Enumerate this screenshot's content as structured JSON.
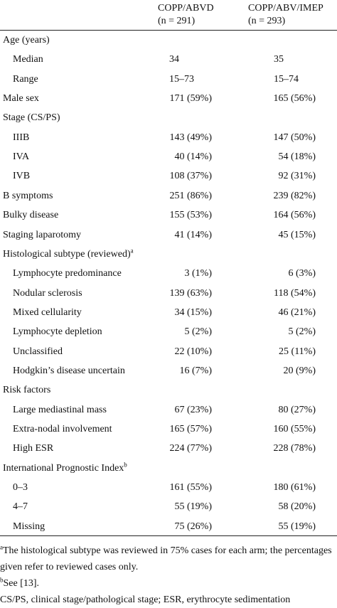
{
  "table": {
    "columns": [
      {
        "name": "COPP/ABVD",
        "n": "(n = 291)"
      },
      {
        "name": "COPP/ABV/IMEP",
        "n": "(n = 293)"
      }
    ],
    "rows": [
      {
        "label": "Age (years)",
        "rows": [
          {
            "label": "Median",
            "values": [
              "34",
              "35"
            ]
          },
          {
            "label": "Range",
            "values": [
              "15–73",
              "15–74"
            ]
          }
        ]
      },
      {
        "label": "Male sex",
        "values": [
          "171 (59%)",
          "165 (56%)"
        ]
      },
      {
        "label": "Stage (CS/PS)",
        "rows": [
          {
            "label": "IIIB",
            "values": [
              "143 (49%)",
              "147 (50%)"
            ]
          },
          {
            "label": "IVA",
            "values": [
              "40 (14%)",
              "54 (18%)"
            ]
          },
          {
            "label": "IVB",
            "values": [
              "108 (37%)",
              "92 (31%)"
            ]
          }
        ]
      },
      {
        "label": "B symptoms",
        "values": [
          "251 (86%)",
          "239 (82%)"
        ]
      },
      {
        "label": "Bulky disease",
        "values": [
          "155 (53%)",
          "164 (56%)"
        ]
      },
      {
        "label": "Staging laparotomy",
        "values": [
          "41 (14%)",
          "45 (15%)"
        ]
      },
      {
        "label": "Histological subtype (reviewed)",
        "note": "a",
        "rows": [
          {
            "label": "Lymphocyte predominance",
            "values": [
              "3 (1%)",
              "6 (3%)"
            ]
          },
          {
            "label": "Nodular sclerosis",
            "values": [
              "139 (63%)",
              "118 (54%)"
            ]
          },
          {
            "label": "Mixed cellularity",
            "values": [
              "34 (15%)",
              "46 (21%)"
            ]
          },
          {
            "label": "Lymphocyte depletion",
            "values": [
              "5 (2%)",
              "5 (2%)"
            ]
          },
          {
            "label": "Unclassified",
            "values": [
              "22 (10%)",
              "25 (11%)"
            ]
          },
          {
            "label": "Hodgkin’s disease uncertain",
            "values": [
              "16 (7%)",
              "20 (9%)"
            ]
          }
        ]
      },
      {
        "label": "Risk factors",
        "rows": [
          {
            "label": "Large mediastinal mass",
            "values": [
              "67 (23%)",
              "80 (27%)"
            ]
          },
          {
            "label": "Extra-nodal involvement",
            "values": [
              "165 (57%)",
              "160 (55%)"
            ]
          },
          {
            "label": "High ESR",
            "values": [
              "224 (77%)",
              "228 (78%)"
            ]
          }
        ]
      },
      {
        "label": "International Prognostic Index",
        "note": "b",
        "rows": [
          {
            "label": "0–3",
            "values": [
              "161 (55%)",
              "180 (61%)"
            ]
          },
          {
            "label": "4–7",
            "values": [
              "55 (19%)",
              "58 (20%)"
            ]
          },
          {
            "label": "Missing",
            "values": [
              "75 (26%)",
              "55 (19%)"
            ]
          }
        ]
      }
    ],
    "footnotes": [
      {
        "mark": "a",
        "text": "The histological subtype was reviewed in 75% cases for each arm; the percentages given refer to reviewed cases only."
      },
      {
        "mark": "b",
        "text": "See [13]."
      },
      {
        "text": "CS/PS, clinical stage/pathological stage; ESR, erythrocyte sedimentation"
      }
    ]
  }
}
